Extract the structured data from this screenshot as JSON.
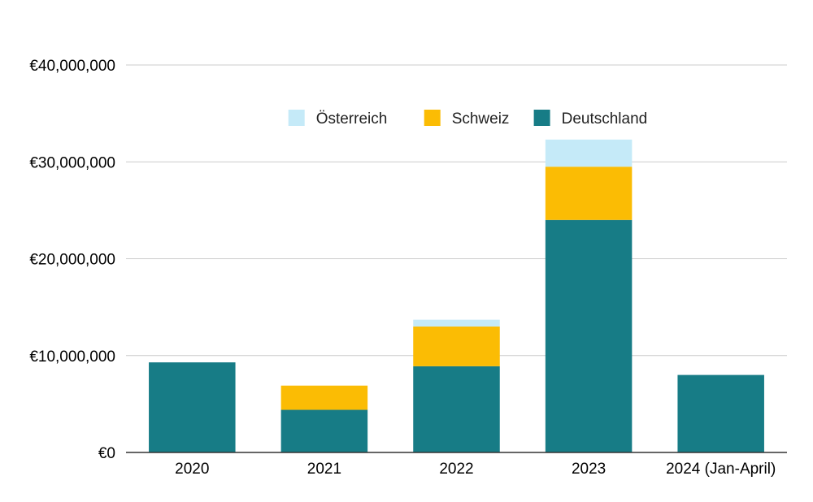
{
  "chart_data": {
    "type": "bar",
    "stacked": true,
    "categories": [
      "2020",
      "2021",
      "2022",
      "2023",
      "2024 (Jan-April)"
    ],
    "series": [
      {
        "name": "Deutschland",
        "color": "#177c86",
        "values": [
          9300000,
          4400000,
          8900000,
          24000000,
          8000000
        ]
      },
      {
        "name": "Schweiz",
        "color": "#fbbc04",
        "values": [
          0,
          2500000,
          4100000,
          5500000,
          0
        ]
      },
      {
        "name": "Österreich",
        "color": "#c5eaf8",
        "values": [
          0,
          0,
          700000,
          2800000,
          0
        ]
      }
    ],
    "legend_order": [
      "Österreich",
      "Schweiz",
      "Deutschland"
    ],
    "y_ticks": [
      "€0",
      "€10,000,000",
      "€20,000,000",
      "€30,000,000",
      "€40,000,000"
    ],
    "ylim": [
      0,
      40000000
    ],
    "grid": true,
    "legend_position": "top-center",
    "title": "",
    "xlabel": "",
    "ylabel": ""
  }
}
